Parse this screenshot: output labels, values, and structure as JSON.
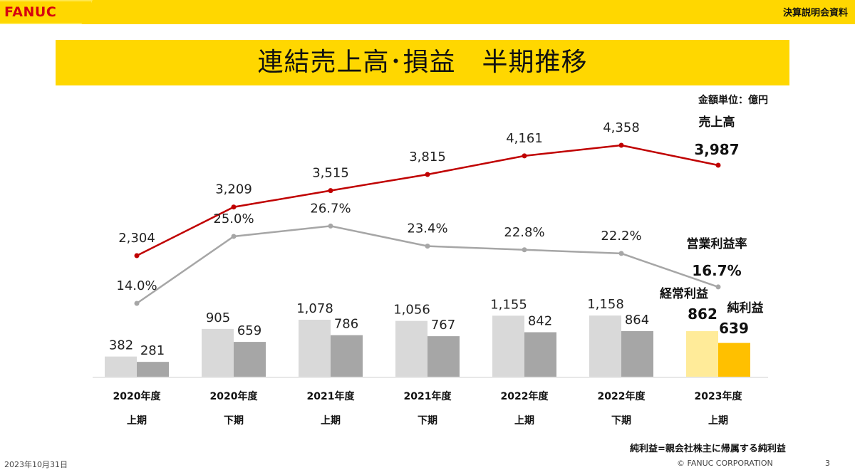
{
  "header": {
    "logo": "FANUC",
    "doc_label": "決算説明会資料",
    "title": "連結売上高･損益　半期推移",
    "unit": "金額単位：億円"
  },
  "chart_data": {
    "type": "bar",
    "categories": [
      [
        "2020年度",
        "上期"
      ],
      [
        "2020年度",
        "下期"
      ],
      [
        "2021年度",
        "上期"
      ],
      [
        "2021年度",
        "下期"
      ],
      [
        "2022年度",
        "上期"
      ],
      [
        "2022年度",
        "下期"
      ],
      [
        "2023年度",
        "上期"
      ]
    ],
    "series": [
      {
        "name": "売上高",
        "kind": "line",
        "values": [
          2304,
          3209,
          3515,
          3815,
          4161,
          4358,
          3987
        ],
        "labels": [
          "2,304",
          "3,209",
          "3,515",
          "3,815",
          "4,161",
          "4,358",
          "3,987"
        ],
        "color": "#c00000"
      },
      {
        "name": "営業利益率",
        "kind": "line",
        "values": [
          14.0,
          25.0,
          26.7,
          23.4,
          22.8,
          22.2,
          16.7
        ],
        "labels": [
          "14.0%",
          "25.0%",
          "26.7%",
          "23.4%",
          "22.8%",
          "22.2%",
          "16.7%"
        ],
        "color": "#a6a6a6"
      },
      {
        "name": "経常利益",
        "kind": "bar",
        "values": [
          382,
          905,
          1078,
          1056,
          1155,
          1158,
          862
        ],
        "labels": [
          "382",
          "905",
          "1,078",
          "1,056",
          "1,155",
          "1,158",
          "862"
        ],
        "color": "#d9d9d9",
        "highlight_color": "#ffeb99"
      },
      {
        "name": "純利益",
        "kind": "bar",
        "values": [
          281,
          659,
          786,
          767,
          842,
          864,
          639
        ],
        "labels": [
          "281",
          "659",
          "786",
          "767",
          "842",
          "864",
          "639"
        ],
        "color": "#a6a6a6",
        "highlight_color": "#ffc000"
      }
    ],
    "highlight_index": 6
  },
  "footnote": "純利益=親会社株主に帰属する純利益",
  "footer": {
    "date": "2023年10月31日",
    "copyright": "© FANUC CORPORATION",
    "page": "3"
  }
}
